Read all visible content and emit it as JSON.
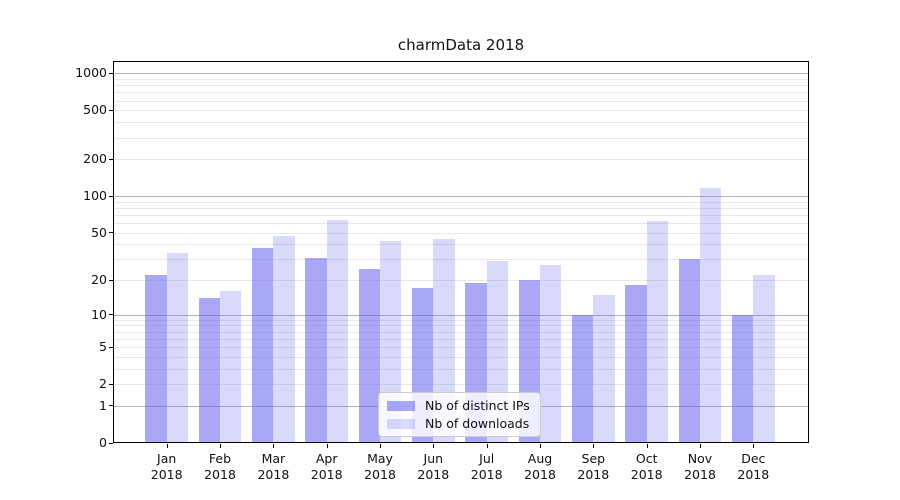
{
  "title": "charmData 2018",
  "chart_data": {
    "type": "bar",
    "title": "charmData 2018",
    "categories": [
      "Jan 2018",
      "Feb 2018",
      "Mar 2018",
      "Apr 2018",
      "May 2018",
      "Jun 2018",
      "Jul 2018",
      "Aug 2018",
      "Sep 2018",
      "Oct 2018",
      "Nov 2018",
      "Dec 2018"
    ],
    "series": [
      {
        "name": "Nb of distinct IPs",
        "color": "rgba(99,99,240,0.56)",
        "values": [
          22,
          14,
          37,
          31,
          25,
          17,
          19,
          20,
          10,
          18,
          30,
          10
        ]
      },
      {
        "name": "Nb of downloads",
        "color": "rgba(99,99,240,0.245)",
        "values": [
          34,
          16,
          47,
          63,
          43,
          44,
          29,
          27,
          15,
          62,
          117,
          22
        ]
      }
    ],
    "xlabel": "",
    "ylabel": "",
    "yscale": "log10(1+y)",
    "ylim": [
      0,
      1260
    ],
    "yticks": [
      0,
      1,
      2,
      5,
      10,
      20,
      50,
      100,
      200,
      500,
      1000
    ],
    "gridlines": {
      "major": [
        1,
        10,
        100,
        1000
      ],
      "minor": [
        2,
        3,
        4,
        5,
        6,
        7,
        8,
        9,
        20,
        30,
        40,
        50,
        60,
        70,
        80,
        90,
        200,
        300,
        400,
        500,
        600,
        700,
        800,
        900
      ]
    },
    "grid": true,
    "legend_position": "lower center"
  },
  "colors": {
    "major_grid": "#b3b3b3",
    "minor_grid": "#e8e8e8",
    "spine": "#000000",
    "text": "#111111",
    "legend_bg": "rgba(255,255,255,0.8)",
    "legend_border": "#cccccc"
  }
}
